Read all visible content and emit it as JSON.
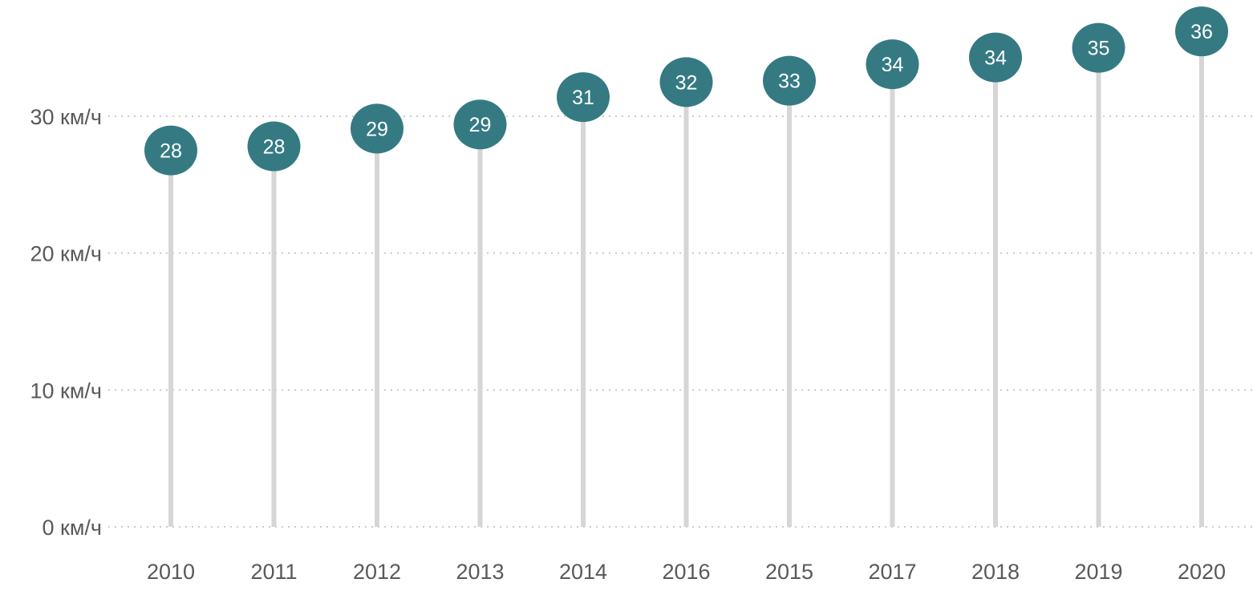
{
  "chart_data": {
    "type": "lollipop",
    "title": "",
    "xlabel": "",
    "ylabel": "",
    "categories": [
      "2010",
      "2011",
      "2012",
      "2013",
      "2014",
      "2016",
      "2015",
      "2017",
      "2018",
      "2019",
      "2020"
    ],
    "series": [
      {
        "values": [
          27.5,
          27.8,
          29.1,
          29.4,
          31.4,
          32.5,
          32.6,
          33.8,
          34.3,
          35.0,
          36.2
        ],
        "labels": [
          "28",
          "28",
          "29",
          "29",
          "31",
          "32",
          "33",
          "34",
          "34",
          "35",
          "36"
        ]
      }
    ],
    "ylim": [
      0,
      36.5
    ],
    "yticks": [
      0,
      10,
      20,
      30
    ],
    "ytick_labels": [
      "0 км/ч",
      "10 км/ч",
      "20 км/ч",
      "30 км/ч"
    ],
    "grid": "horizontal-dotted",
    "legend": "none",
    "colors": {
      "marker": "#357a83",
      "stem": "#d6d6d6",
      "marker_text": "#ffffff",
      "axis_text": "#595959",
      "gridline": "#b8b8b8"
    }
  }
}
